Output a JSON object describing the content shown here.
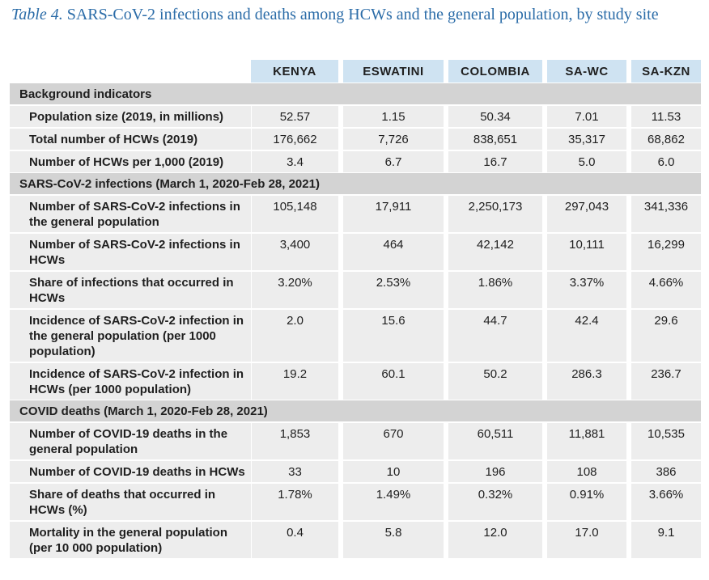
{
  "caption": {
    "lead": "Table 4.",
    "title": "SARS-CoV-2 infections and deaths among HCWs and the general population, by study site"
  },
  "columns": [
    "KENYA",
    "ESWATINI",
    "COLOMBIA",
    "SA-WC",
    "SA-KZN"
  ],
  "sections": [
    {
      "title": "Background indicators",
      "rows": [
        {
          "label": "Population size (2019, in millions)",
          "values": [
            "52.57",
            "1.15",
            "50.34",
            "7.01",
            "11.53"
          ]
        },
        {
          "label": "Total number of HCWs (2019)",
          "values": [
            "176,662",
            "7,726",
            "838,651",
            "35,317",
            "68,862"
          ]
        },
        {
          "label": "Number of HCWs per 1,000 (2019)",
          "values": [
            "3.4",
            "6.7",
            "16.7",
            "5.0",
            "6.0"
          ]
        }
      ]
    },
    {
      "title": "SARS-CoV-2 infections (March 1, 2020-Feb 28, 2021)",
      "rows": [
        {
          "label": "Number of SARS-CoV-2 infections in the general population",
          "values": [
            "105,148",
            "17,911",
            "2,250,173",
            "297,043",
            "341,336"
          ]
        },
        {
          "label": "Number of SARS-CoV-2 infections in HCWs",
          "values": [
            "3,400",
            "464",
            "42,142",
            "10,111",
            "16,299"
          ]
        },
        {
          "label": "Share of infections that occurred in HCWs",
          "values": [
            "3.20%",
            "2.53%",
            "1.86%",
            "3.37%",
            "4.66%"
          ]
        },
        {
          "label": "Incidence of SARS-CoV-2 infection in the general population (per 1000 population)",
          "values": [
            "2.0",
            "15.6",
            "44.7",
            "42.4",
            "29.6"
          ]
        },
        {
          "label": "Incidence of SARS-CoV-2 infection in HCWs (per 1000 population)",
          "values": [
            "19.2",
            "60.1",
            "50.2",
            "286.3",
            "236.7"
          ]
        }
      ]
    },
    {
      "title": "COVID deaths (March 1, 2020-Feb 28, 2021)",
      "rows": [
        {
          "label": "Number of COVID-19 deaths in the general population",
          "values": [
            "1,853",
            "670",
            "60,511",
            "11,881",
            "10,535"
          ]
        },
        {
          "label": "Number of COVID-19 deaths in HCWs",
          "values": [
            "33",
            "10",
            "196",
            "108",
            "386"
          ]
        },
        {
          "label": "Share of deaths that occurred in HCWs (%)",
          "values": [
            "1.78%",
            "1.49%",
            "0.32%",
            "0.91%",
            "3.66%"
          ]
        },
        {
          "label": "Mortality in the general population (per 10 000 population)",
          "values": [
            "0.4",
            "5.8",
            "12.0",
            "17.0",
            "9.1"
          ]
        }
      ]
    }
  ]
}
